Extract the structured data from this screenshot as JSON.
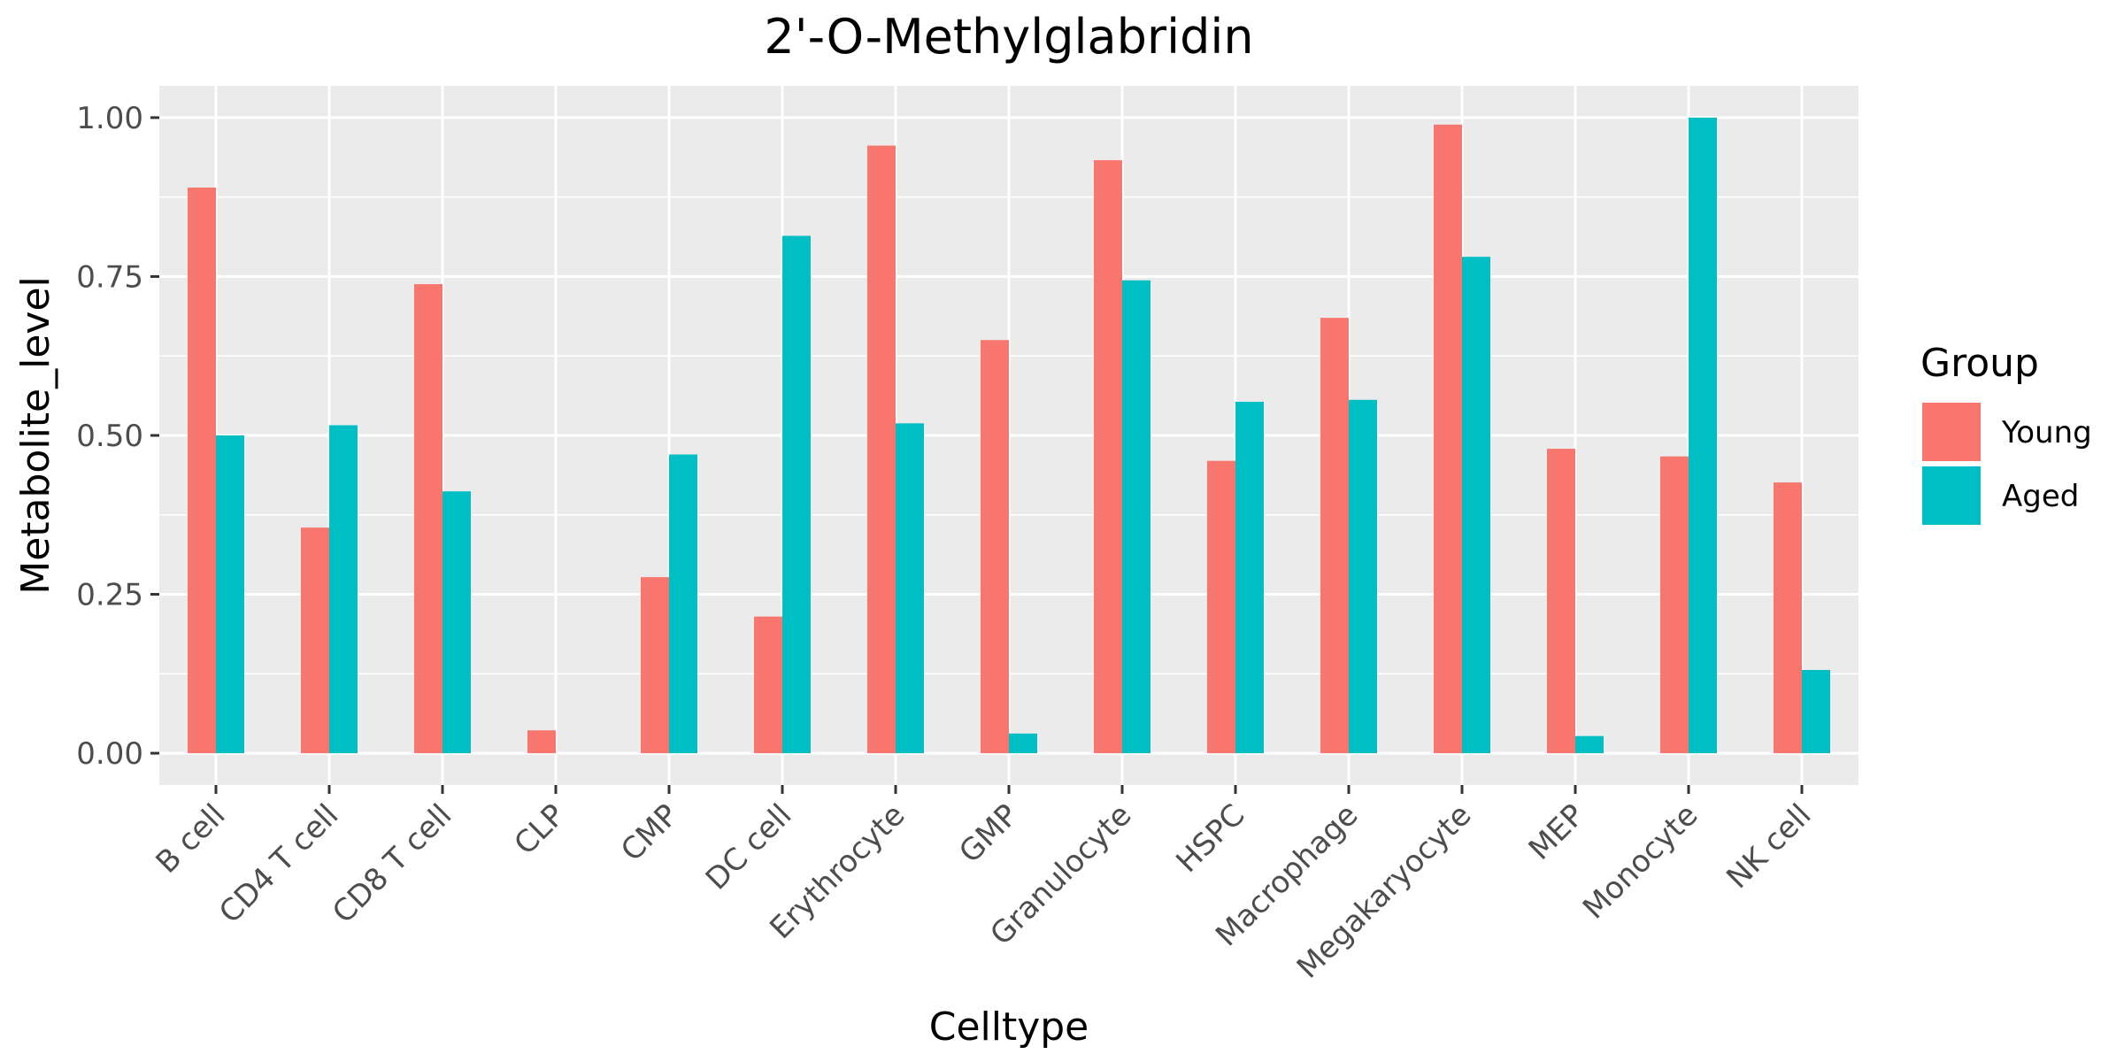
{
  "chart_data": {
    "type": "bar",
    "title": "2'-O-Methylglabridin",
    "xlabel": "Celltype",
    "ylabel": "Metabolite_level",
    "categories": [
      "B cell",
      "CD4 T cell",
      "CD8 T cell",
      "CLP",
      "CMP",
      "DC cell",
      "Erythrocyte",
      "GMP",
      "Granulocyte",
      "HSPC",
      "Macrophage",
      "Megakaryocyte",
      "MEP",
      "Monocyte",
      "NK cell"
    ],
    "series": [
      {
        "name": "Young",
        "color": "#F8766D",
        "values": [
          0.89,
          0.355,
          0.738,
          0.036,
          0.277,
          0.215,
          0.956,
          0.65,
          0.933,
          0.46,
          0.685,
          0.989,
          0.479,
          0.467,
          0.426
        ]
      },
      {
        "name": "Aged",
        "color": "#00BFC4",
        "values": [
          0.5,
          0.516,
          0.412,
          0.0,
          0.47,
          0.814,
          0.519,
          0.031,
          0.744,
          0.553,
          0.556,
          0.781,
          0.027,
          1.0,
          0.131
        ]
      }
    ],
    "ylim": [
      -0.05,
      1.05
    ],
    "yticks": [
      0.0,
      0.25,
      0.5,
      0.75,
      1.0
    ],
    "ytick_labels": [
      "0.00",
      "0.25",
      "0.50",
      "0.75",
      "1.00"
    ],
    "legend_title": "Group",
    "legend_position": "right",
    "grid": true,
    "panel_background": "#EBEBEB"
  }
}
